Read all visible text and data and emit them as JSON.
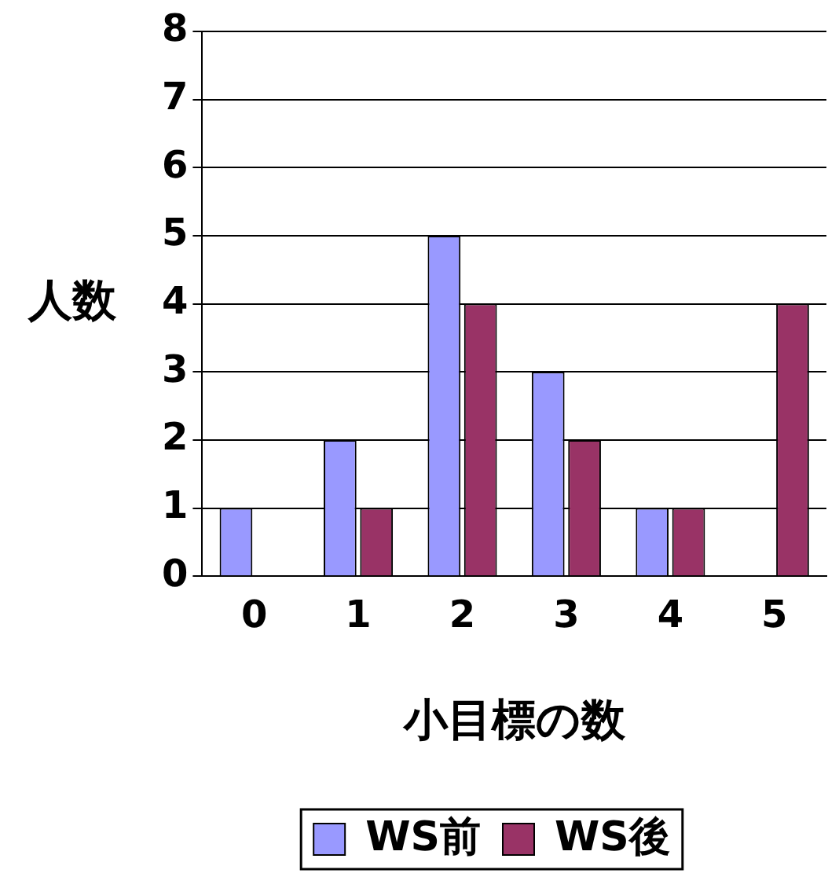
{
  "chart_data": {
    "type": "bar",
    "xlabel": "小目標の数",
    "ylabel": "人数",
    "categories": [
      "0",
      "1",
      "2",
      "3",
      "4",
      "5"
    ],
    "series": [
      {
        "name": "WS前",
        "color": "#9999ff",
        "values": [
          1,
          2,
          5,
          3,
          1,
          0
        ]
      },
      {
        "name": "WS後",
        "color": "#993366",
        "values": [
          0,
          1,
          4,
          2,
          1,
          4
        ]
      }
    ],
    "ylim": [
      0,
      8
    ],
    "yticks": [
      0,
      1,
      2,
      3,
      4,
      5,
      6,
      7,
      8
    ],
    "grid": "y",
    "legend": "bottom"
  }
}
